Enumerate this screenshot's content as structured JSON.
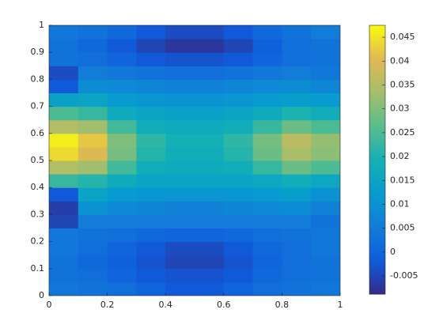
{
  "chart_data": {
    "type": "heatmap",
    "x": [
      0.05,
      0.15,
      0.25,
      0.35,
      0.45,
      0.55,
      0.65,
      0.75,
      0.85,
      0.95
    ],
    "y": [
      0.025,
      0.075,
      0.125,
      0.175,
      0.225,
      0.275,
      0.325,
      0.375,
      0.425,
      0.475,
      0.525,
      0.575,
      0.625,
      0.675,
      0.725,
      0.775,
      0.825,
      0.875,
      0.925,
      0.975
    ],
    "z": [
      [
        0.004,
        0.003,
        0.002,
        0.0,
        -0.002,
        -0.002,
        0.0,
        0.002,
        0.003,
        0.004
      ],
      [
        0.003,
        0.002,
        0.0,
        -0.002,
        -0.003,
        -0.003,
        -0.002,
        0.001,
        0.002,
        0.003
      ],
      [
        0.003,
        0.001,
        -0.001,
        -0.003,
        -0.005,
        -0.005,
        -0.003,
        0.0,
        0.002,
        0.003
      ],
      [
        0.004,
        0.002,
        0.0,
        -0.002,
        -0.004,
        -0.004,
        -0.002,
        0.001,
        0.002,
        0.004
      ],
      [
        0.004,
        0.003,
        0.002,
        0.001,
        0.0,
        0.0,
        0.001,
        0.002,
        0.003,
        0.004
      ],
      [
        -0.005,
        0.005,
        0.005,
        0.005,
        0.005,
        0.005,
        0.005,
        0.005,
        0.005,
        0.003
      ],
      [
        -0.006,
        0.01,
        0.008,
        0.007,
        0.006,
        0.006,
        0.007,
        0.008,
        0.009,
        0.006
      ],
      [
        -0.002,
        0.015,
        0.012,
        0.011,
        0.011,
        0.011,
        0.011,
        0.012,
        0.013,
        0.01
      ],
      [
        0.023,
        0.021,
        0.017,
        0.015,
        0.015,
        0.015,
        0.015,
        0.016,
        0.018,
        0.016
      ],
      [
        0.035,
        0.033,
        0.024,
        0.018,
        0.017,
        0.017,
        0.018,
        0.023,
        0.028,
        0.025
      ],
      [
        0.044,
        0.04,
        0.029,
        0.021,
        0.018,
        0.018,
        0.021,
        0.028,
        0.034,
        0.031
      ],
      [
        0.046,
        0.042,
        0.03,
        0.022,
        0.019,
        0.019,
        0.022,
        0.029,
        0.036,
        0.032
      ],
      [
        0.035,
        0.033,
        0.024,
        0.018,
        0.017,
        0.017,
        0.018,
        0.023,
        0.028,
        0.025
      ],
      [
        0.025,
        0.023,
        0.017,
        0.015,
        0.014,
        0.014,
        0.015,
        0.017,
        0.02,
        0.018
      ],
      [
        0.014,
        0.015,
        0.012,
        0.011,
        0.01,
        0.01,
        0.011,
        0.012,
        0.013,
        0.012
      ],
      [
        -0.002,
        0.009,
        0.008,
        0.007,
        0.006,
        0.006,
        0.007,
        0.008,
        0.009,
        0.007
      ],
      [
        -0.004,
        0.005,
        0.004,
        0.003,
        0.002,
        0.002,
        0.003,
        0.004,
        0.005,
        0.004
      ],
      [
        0.003,
        0.002,
        0.0,
        -0.002,
        -0.003,
        -0.003,
        -0.002,
        0.0,
        0.002,
        0.003
      ],
      [
        0.003,
        0.001,
        -0.002,
        -0.005,
        -0.007,
        -0.007,
        -0.005,
        -0.001,
        0.002,
        0.003
      ],
      [
        0.004,
        0.003,
        0.001,
        -0.002,
        -0.004,
        -0.004,
        -0.002,
        0.001,
        0.003,
        0.005
      ]
    ],
    "xlim": [
      0,
      1
    ],
    "xticks": [
      0,
      0.2,
      0.4,
      0.6,
      0.8,
      1
    ],
    "ylim": [
      0,
      1
    ],
    "yticks": [
      0,
      0.1,
      0.2,
      0.3,
      0.4,
      0.5,
      0.6,
      0.7,
      0.8,
      0.9,
      1
    ],
    "clim": [
      -0.0088,
      0.0475
    ],
    "cticks": [
      -0.005,
      0,
      0.005,
      0.01,
      0.015,
      0.02,
      0.025,
      0.03,
      0.035,
      0.04,
      0.045
    ]
  }
}
